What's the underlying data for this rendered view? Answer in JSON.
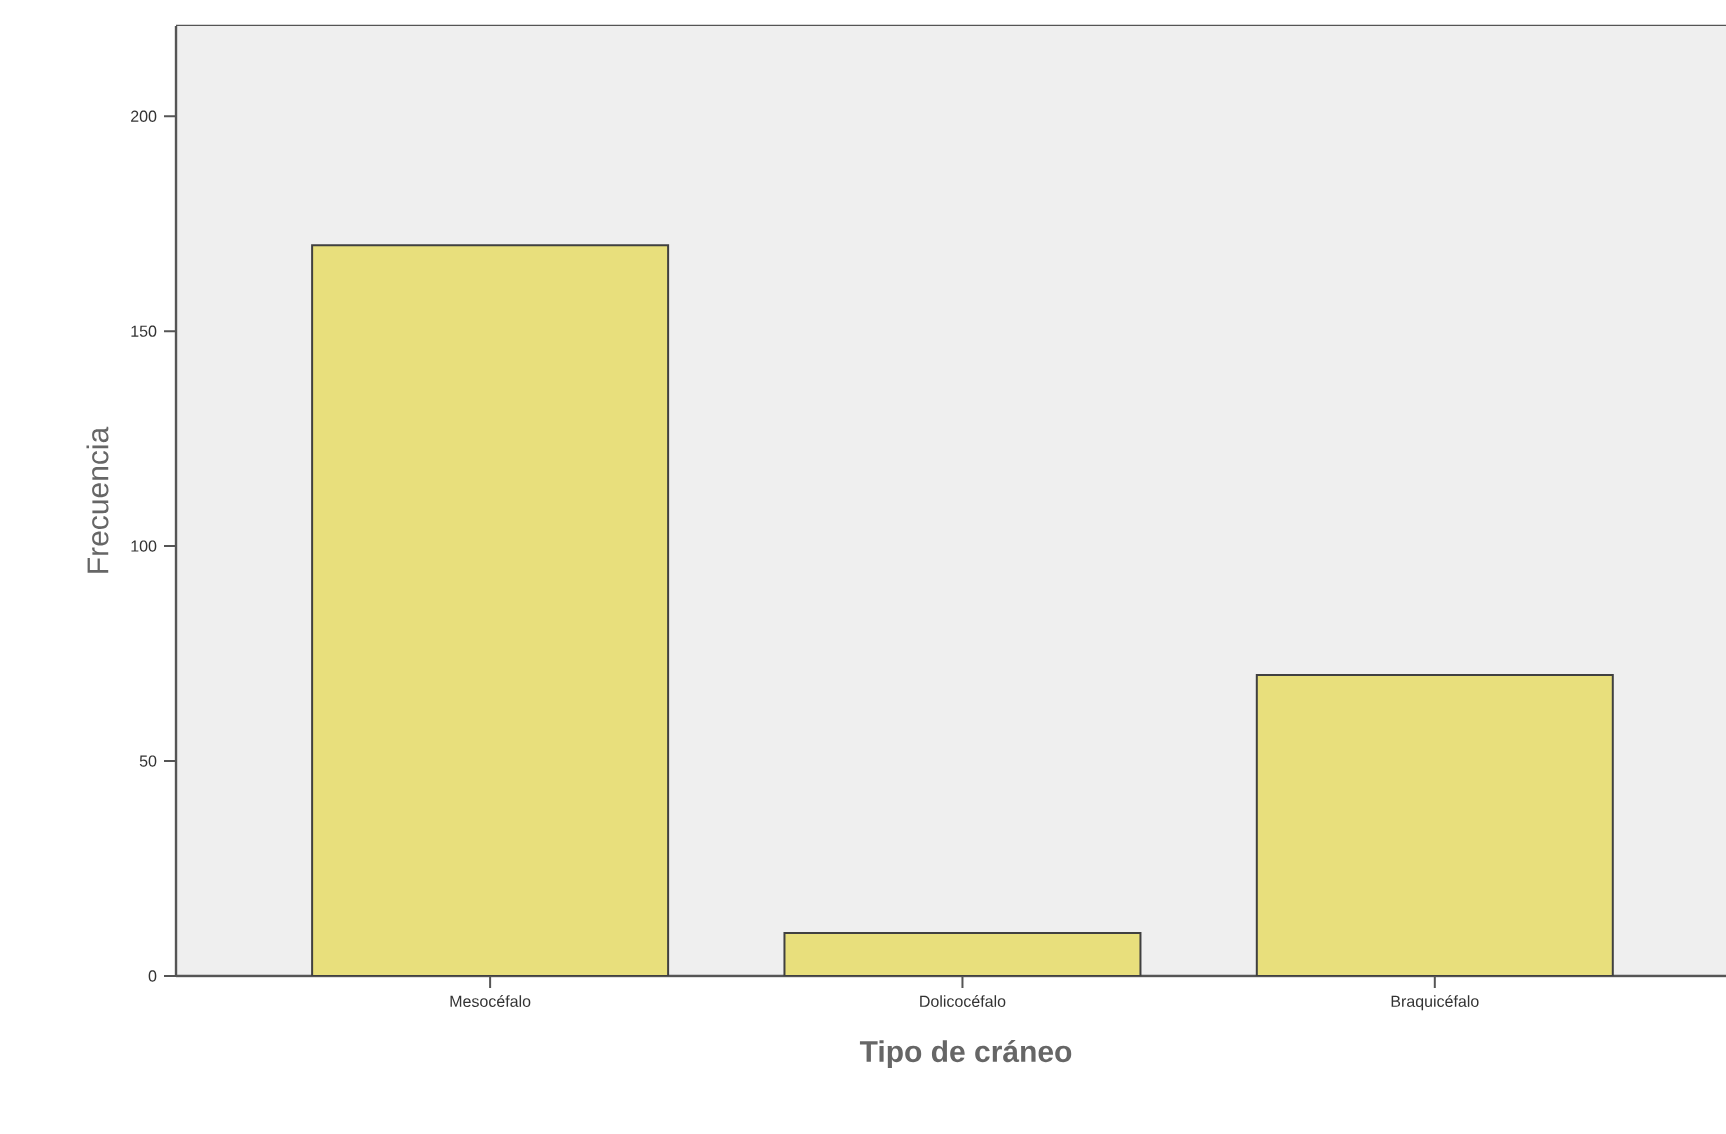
{
  "chart_data": {
    "type": "bar",
    "xlabel": "Tipo de cráneo",
    "ylabel": "Frecuencia",
    "categories": [
      "Mesocéfalo",
      "Dolicocéfalo",
      "Braquicéfalo"
    ],
    "values": [
      170,
      10,
      70
    ],
    "color": "#e8df7c",
    "ylim": [
      0,
      221
    ],
    "yticks": [
      0,
      50,
      100,
      150,
      200
    ],
    "grid": false
  }
}
